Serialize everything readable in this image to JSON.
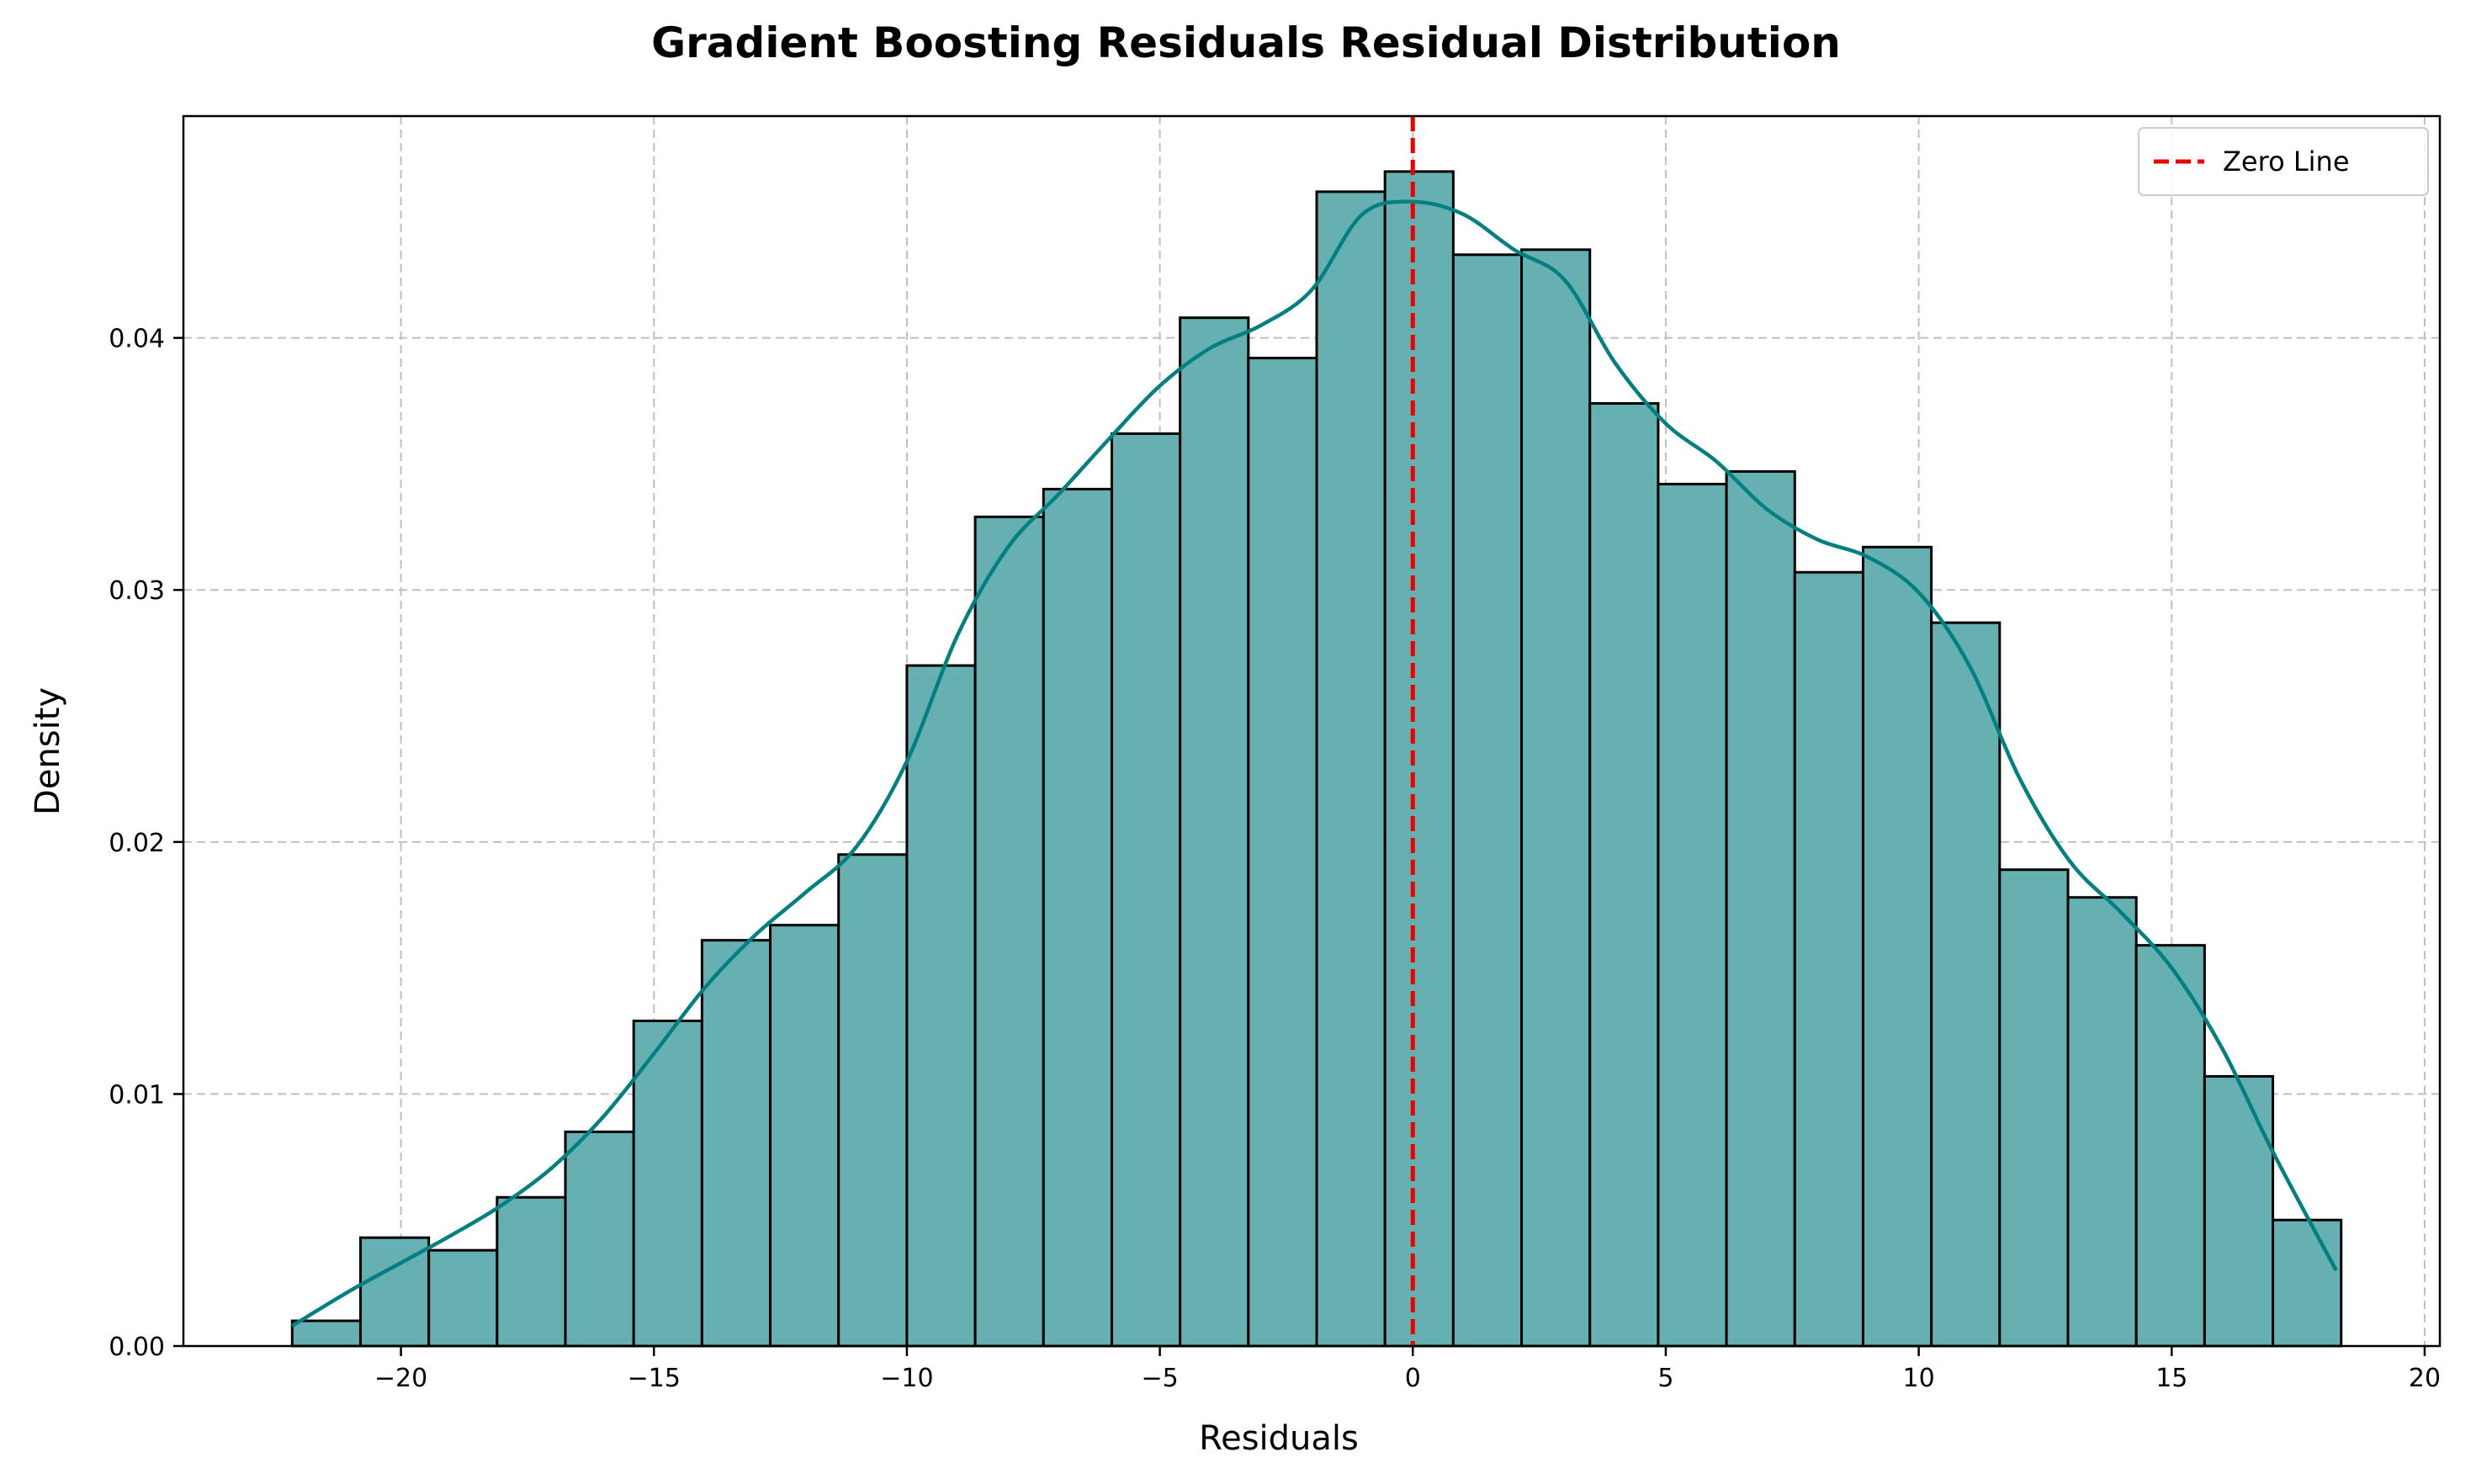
{
  "chart_data": {
    "type": "bar",
    "subtype": "histogram_with_kde",
    "title": "Gradient Boosting Residuals Residual Distribution",
    "xlabel": "Residuals",
    "ylabel": "Density",
    "xlim": [
      -24.3,
      20.3
    ],
    "ylim": [
      0,
      0.0488
    ],
    "xticks": [
      -20,
      -15,
      -10,
      -5,
      0,
      5,
      10,
      15,
      20
    ],
    "xtick_labels": [
      "−20",
      "−15",
      "−10",
      "−5",
      "0",
      "5",
      "10",
      "15",
      "20"
    ],
    "yticks": [
      0.0,
      0.01,
      0.02,
      0.03,
      0.04
    ],
    "ytick_labels": [
      "0.00",
      "0.01",
      "0.02",
      "0.03",
      "0.04"
    ],
    "grid": true,
    "legend_position": "top-right",
    "bins": {
      "start": -22.15,
      "width": 1.35,
      "values": [
        0.001,
        0.0043,
        0.0038,
        0.0059,
        0.0085,
        0.0129,
        0.0161,
        0.0167,
        0.0195,
        0.027,
        0.0329,
        0.034,
        0.0362,
        0.0408,
        0.0392,
        0.0458,
        0.0466,
        0.0433,
        0.0435,
        0.0374,
        0.0342,
        0.0347,
        0.0307,
        0.0317,
        0.0287,
        0.0189,
        0.0178,
        0.0159,
        0.0107,
        0.005
      ]
    },
    "kde": {
      "x": [
        -22.15,
        -21.0,
        -20.0,
        -19.0,
        -18.0,
        -17.0,
        -16.0,
        -15.0,
        -14.0,
        -13.0,
        -12.0,
        -11.0,
        -10.0,
        -9.0,
        -8.0,
        -7.0,
        -6.0,
        -5.0,
        -4.0,
        -3.0,
        -2.0,
        -1.0,
        0.0,
        1.0,
        2.0,
        3.0,
        4.0,
        5.0,
        6.0,
        7.0,
        8.0,
        9.0,
        10.0,
        11.0,
        12.0,
        13.0,
        14.0,
        15.0,
        16.0,
        17.0,
        18.25
      ],
      "y": [
        0.0008,
        0.0022,
        0.0033,
        0.0044,
        0.0056,
        0.0071,
        0.0091,
        0.0116,
        0.0142,
        0.0163,
        0.018,
        0.0198,
        0.0232,
        0.0282,
        0.0317,
        0.0338,
        0.036,
        0.0381,
        0.0396,
        0.0405,
        0.0419,
        0.0449,
        0.0454,
        0.0449,
        0.0435,
        0.0423,
        0.039,
        0.0366,
        0.0351,
        0.0332,
        0.032,
        0.0313,
        0.0299,
        0.027,
        0.0225,
        0.0192,
        0.0172,
        0.015,
        0.0118,
        0.0077,
        0.003
      ]
    },
    "legend": [
      {
        "label": "Zero Line",
        "style": "dashed",
        "color": "#ee0000"
      }
    ],
    "reference_line": {
      "x": 0,
      "color": "#ee0000",
      "style": "dashed"
    },
    "colors": {
      "bar_fill": "#66b0b2",
      "bar_edge": "#000000",
      "kde_line": "#008080",
      "grid": "#c0c0c0"
    }
  }
}
